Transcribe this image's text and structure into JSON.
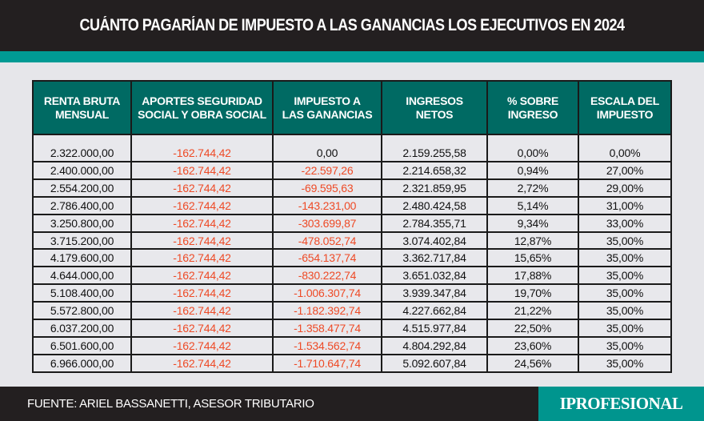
{
  "title": "CUÁNTO PAGARÍAN DE IMPUESTO A LAS GANANCIAS LOS EJECUTIVOS EN 2024",
  "colors": {
    "header_bg": "#006a63",
    "accent_teal": "#009a94",
    "negative_text": "#ee4a26",
    "dark_bar": "#231f20"
  },
  "table": {
    "headers": [
      [
        "RENTA BRUTA",
        "MENSUAL"
      ],
      [
        "APORTES SEGURIDAD",
        "SOCIAL Y OBRA SOCIAL"
      ],
      [
        "IMPUESTO A",
        "LAS GANANCIAS"
      ],
      [
        "INGRESOS",
        "NETOS"
      ],
      [
        "% SOBRE",
        "INGRESO"
      ],
      [
        "ESCALA DEL",
        "IMPUESTO"
      ]
    ],
    "rows": [
      [
        "2.322.000,00",
        "-162.744,42",
        "0,00",
        "2.159.255,58",
        "0,00%",
        "0,00%"
      ],
      [
        "2.400.000,00",
        "-162.744,42",
        "-22.597,26",
        "2.214.658,32",
        "0,94%",
        "27,00%"
      ],
      [
        "2.554.200,00",
        "-162.744,42",
        "-69.595,63",
        "2.321.859,95",
        "2,72%",
        "29,00%"
      ],
      [
        "2.786.400,00",
        "-162.744,42",
        "-143.231,00",
        "2.480.424,58",
        "5,14%",
        "31,00%"
      ],
      [
        "3.250.800,00",
        "-162.744,42",
        "-303.699,87",
        "2.784.355,71",
        "9,34%",
        "33,00%"
      ],
      [
        "3.715.200,00",
        "-162.744,42",
        "-478.052,74",
        "3.074.402,84",
        "12,87%",
        "35,00%"
      ],
      [
        "4.179.600,00",
        "-162.744,42",
        "-654.137,74",
        "3.362.717,84",
        "15,65%",
        "35,00%"
      ],
      [
        "4.644.000,00",
        "-162.744,42",
        "-830.222,74",
        "3.651.032,84",
        "17,88%",
        "35,00%"
      ],
      [
        "5.108.400,00",
        "-162.744,42",
        "-1.006.307,74",
        "3.939.347,84",
        "19,70%",
        "35,00%"
      ],
      [
        "5.572.800,00",
        "-162.744,42",
        "-1.182.392,74",
        "4.227.662,84",
        "21,22%",
        "35,00%"
      ],
      [
        "6.037.200,00",
        "-162.744,42",
        "-1.358.477,74",
        "4.515.977,84",
        "22,50%",
        "35,00%"
      ],
      [
        "6.501.600,00",
        "-162.744,42",
        "-1.534.562,74",
        "4.804.292,84",
        "23,60%",
        "35,00%"
      ],
      [
        "6.966.000,00",
        "-162.744,42",
        "-1.710.647,74",
        "5.092.607,84",
        "24,56%",
        "35,00%"
      ]
    ]
  },
  "footer": {
    "source": "FUENTE: ARIEL BASSANETTI, ASESOR TRIBUTARIO",
    "logo": "IPROFESIONAL"
  }
}
